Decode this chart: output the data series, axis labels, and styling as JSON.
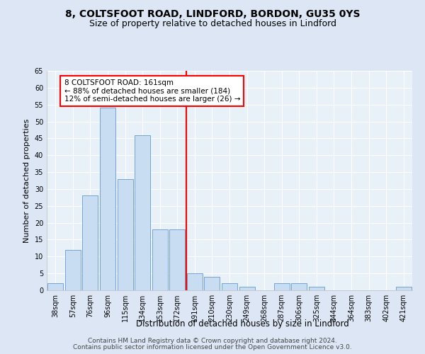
{
  "title1": "8, COLTSFOOT ROAD, LINDFORD, BORDON, GU35 0YS",
  "title2": "Size of property relative to detached houses in Lindford",
  "xlabel": "Distribution of detached houses by size in Lindford",
  "ylabel": "Number of detached properties",
  "bar_labels": [
    "38sqm",
    "57sqm",
    "76sqm",
    "96sqm",
    "115sqm",
    "134sqm",
    "153sqm",
    "172sqm",
    "191sqm",
    "210sqm",
    "230sqm",
    "249sqm",
    "268sqm",
    "287sqm",
    "306sqm",
    "325sqm",
    "344sqm",
    "364sqm",
    "383sqm",
    "402sqm",
    "421sqm"
  ],
  "bar_values": [
    2,
    12,
    28,
    54,
    33,
    46,
    18,
    18,
    5,
    4,
    2,
    1,
    0,
    2,
    2,
    1,
    0,
    0,
    0,
    0,
    1
  ],
  "bar_color": "#c9ddf2",
  "bar_edgecolor": "#6699cc",
  "vline_x": 7.5,
  "vline_color": "red",
  "annotation_text": "8 COLTSFOOT ROAD: 161sqm\n← 88% of detached houses are smaller (184)\n12% of semi-detached houses are larger (26) →",
  "annotation_box_color": "white",
  "annotation_box_edgecolor": "red",
  "ylim": [
    0,
    65
  ],
  "yticks": [
    0,
    5,
    10,
    15,
    20,
    25,
    30,
    35,
    40,
    45,
    50,
    55,
    60,
    65
  ],
  "footer1": "Contains HM Land Registry data © Crown copyright and database right 2024.",
  "footer2": "Contains public sector information licensed under the Open Government Licence v3.0.",
  "bg_color": "#dce6f5",
  "plot_bg_color": "#e8f0f8",
  "grid_color": "white",
  "title1_fontsize": 10,
  "title2_fontsize": 9,
  "xlabel_fontsize": 8.5,
  "ylabel_fontsize": 8,
  "tick_fontsize": 7,
  "footer_fontsize": 6.5,
  "annot_fontsize": 7.5
}
